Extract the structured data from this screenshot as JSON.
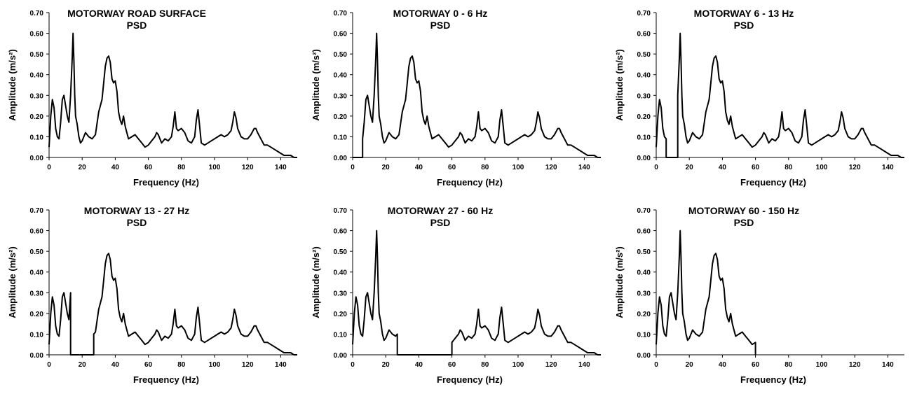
{
  "chart_data": [
    {
      "type": "line",
      "title": "MOTORWAY ROAD SURFACE",
      "subtitle": "PSD",
      "xlabel": "Frequency (Hz)",
      "ylabel": "Amplitude (m/s²)",
      "xlim": [
        0,
        150
      ],
      "ylim": [
        0,
        0.7
      ],
      "xticks": [
        "0",
        "20",
        "40",
        "60",
        "80",
        "100",
        "120",
        "140"
      ],
      "yticks": [
        "0.00",
        "0.10",
        "0.20",
        "0.30",
        "0.40",
        "0.50",
        "0.60",
        "0.70"
      ],
      "band": [
        0,
        150
      ],
      "series_color": "#000000"
    },
    {
      "type": "line",
      "title": "MOTORWAY 0 - 6 Hz",
      "subtitle": "PSD",
      "xlabel": "Frequency (Hz)",
      "ylabel": "Amplitude (m/s²)",
      "xlim": [
        0,
        150
      ],
      "ylim": [
        0,
        0.7
      ],
      "xticks": [
        "0",
        "20",
        "40",
        "60",
        "80",
        "100",
        "120",
        "140"
      ],
      "yticks": [
        "0.00",
        "0.10",
        "0.20",
        "0.30",
        "0.40",
        "0.50",
        "0.60",
        "0.70"
      ],
      "band": [
        6,
        150
      ],
      "series_color": "#000000"
    },
    {
      "type": "line",
      "title": "MOTORWAY 6 - 13 Hz",
      "subtitle": "PSD",
      "xlabel": "Frequency (Hz)",
      "ylabel": "Amplitude (m/s²)",
      "xlim": [
        0,
        150
      ],
      "ylim": [
        0,
        0.7
      ],
      "xticks": [
        "0",
        "20",
        "40",
        "60",
        "80",
        "100",
        "120",
        "140"
      ],
      "yticks": [
        "0.00",
        "0.10",
        "0.20",
        "0.30",
        "0.40",
        "0.50",
        "0.60",
        "0.70"
      ],
      "band": [
        0,
        6,
        13,
        150
      ],
      "series_color": "#000000"
    },
    {
      "type": "line",
      "title": "MOTORWAY 13 - 27 Hz",
      "subtitle": "PSD",
      "xlabel": "Frequency (Hz)",
      "ylabel": "Amplitude (m/s²)",
      "xlim": [
        0,
        150
      ],
      "ylim": [
        0,
        0.7
      ],
      "xticks": [
        "0",
        "20",
        "40",
        "60",
        "80",
        "100",
        "120",
        "140"
      ],
      "yticks": [
        "0.00",
        "0.10",
        "0.20",
        "0.30",
        "0.40",
        "0.50",
        "0.60",
        "0.70"
      ],
      "band": [
        0,
        13,
        27,
        150
      ],
      "series_color": "#000000"
    },
    {
      "type": "line",
      "title": "MOTORWAY 27 - 60 Hz",
      "subtitle": "PSD",
      "xlabel": "Frequency (Hz)",
      "ylabel": "Amplitude (m/s²)",
      "xlim": [
        0,
        150
      ],
      "ylim": [
        0,
        0.7
      ],
      "xticks": [
        "0",
        "20",
        "40",
        "60",
        "80",
        "100",
        "120",
        "140"
      ],
      "yticks": [
        "0.00",
        "0.10",
        "0.20",
        "0.30",
        "0.40",
        "0.50",
        "0.60",
        "0.70"
      ],
      "band": [
        0,
        27,
        60,
        150
      ],
      "series_color": "#000000"
    },
    {
      "type": "line",
      "title": "MOTORWAY 60 - 150 Hz",
      "subtitle": "PSD",
      "xlabel": "Frequency (Hz)",
      "ylabel": "Amplitude (m/s²)",
      "xlim": [
        0,
        150
      ],
      "ylim": [
        0,
        0.7
      ],
      "xticks": [
        "0",
        "20",
        "40",
        "60",
        "80",
        "100",
        "120",
        "140"
      ],
      "yticks": [
        "0.00",
        "0.10",
        "0.20",
        "0.30",
        "0.40",
        "0.50",
        "0.60",
        "0.70"
      ],
      "band": [
        0,
        60
      ],
      "series_color": "#000000"
    }
  ],
  "psd": {
    "x": [
      0,
      1,
      2,
      3,
      4,
      5,
      6,
      7,
      8,
      9,
      10,
      11,
      12,
      13,
      14,
      14.5,
      15,
      15.5,
      16,
      17,
      18,
      19,
      20,
      22,
      24,
      26,
      28,
      30,
      32,
      33,
      34,
      35,
      36,
      37,
      38,
      39,
      40,
      41,
      42,
      43,
      44,
      45,
      46,
      47,
      48,
      50,
      52,
      54,
      56,
      58,
      60,
      62,
      64,
      65,
      66,
      67,
      68,
      70,
      72,
      74,
      75,
      76,
      77,
      78,
      80,
      82,
      84,
      86,
      88,
      89,
      90,
      91,
      92,
      94,
      96,
      98,
      100,
      102,
      104,
      106,
      108,
      110,
      111,
      112,
      113,
      114,
      116,
      118,
      120,
      122,
      124,
      125,
      126,
      128,
      130,
      132,
      134,
      136,
      138,
      140,
      142,
      144,
      146,
      148,
      150
    ],
    "y": [
      0.05,
      0.2,
      0.28,
      0.24,
      0.14,
      0.1,
      0.09,
      0.17,
      0.28,
      0.3,
      0.25,
      0.2,
      0.17,
      0.3,
      0.48,
      0.6,
      0.47,
      0.3,
      0.2,
      0.16,
      0.1,
      0.07,
      0.08,
      0.12,
      0.1,
      0.09,
      0.11,
      0.22,
      0.28,
      0.36,
      0.44,
      0.48,
      0.49,
      0.46,
      0.38,
      0.36,
      0.37,
      0.32,
      0.22,
      0.18,
      0.16,
      0.2,
      0.15,
      0.12,
      0.09,
      0.1,
      0.11,
      0.09,
      0.07,
      0.05,
      0.06,
      0.08,
      0.1,
      0.12,
      0.11,
      0.09,
      0.07,
      0.09,
      0.08,
      0.1,
      0.15,
      0.22,
      0.14,
      0.13,
      0.14,
      0.12,
      0.08,
      0.07,
      0.1,
      0.18,
      0.23,
      0.15,
      0.07,
      0.06,
      0.07,
      0.08,
      0.09,
      0.1,
      0.11,
      0.1,
      0.11,
      0.13,
      0.17,
      0.22,
      0.19,
      0.14,
      0.1,
      0.09,
      0.09,
      0.11,
      0.14,
      0.14,
      0.12,
      0.09,
      0.06,
      0.06,
      0.05,
      0.04,
      0.03,
      0.02,
      0.01,
      0.01,
      0.01,
      0.0,
      0.0
    ]
  }
}
